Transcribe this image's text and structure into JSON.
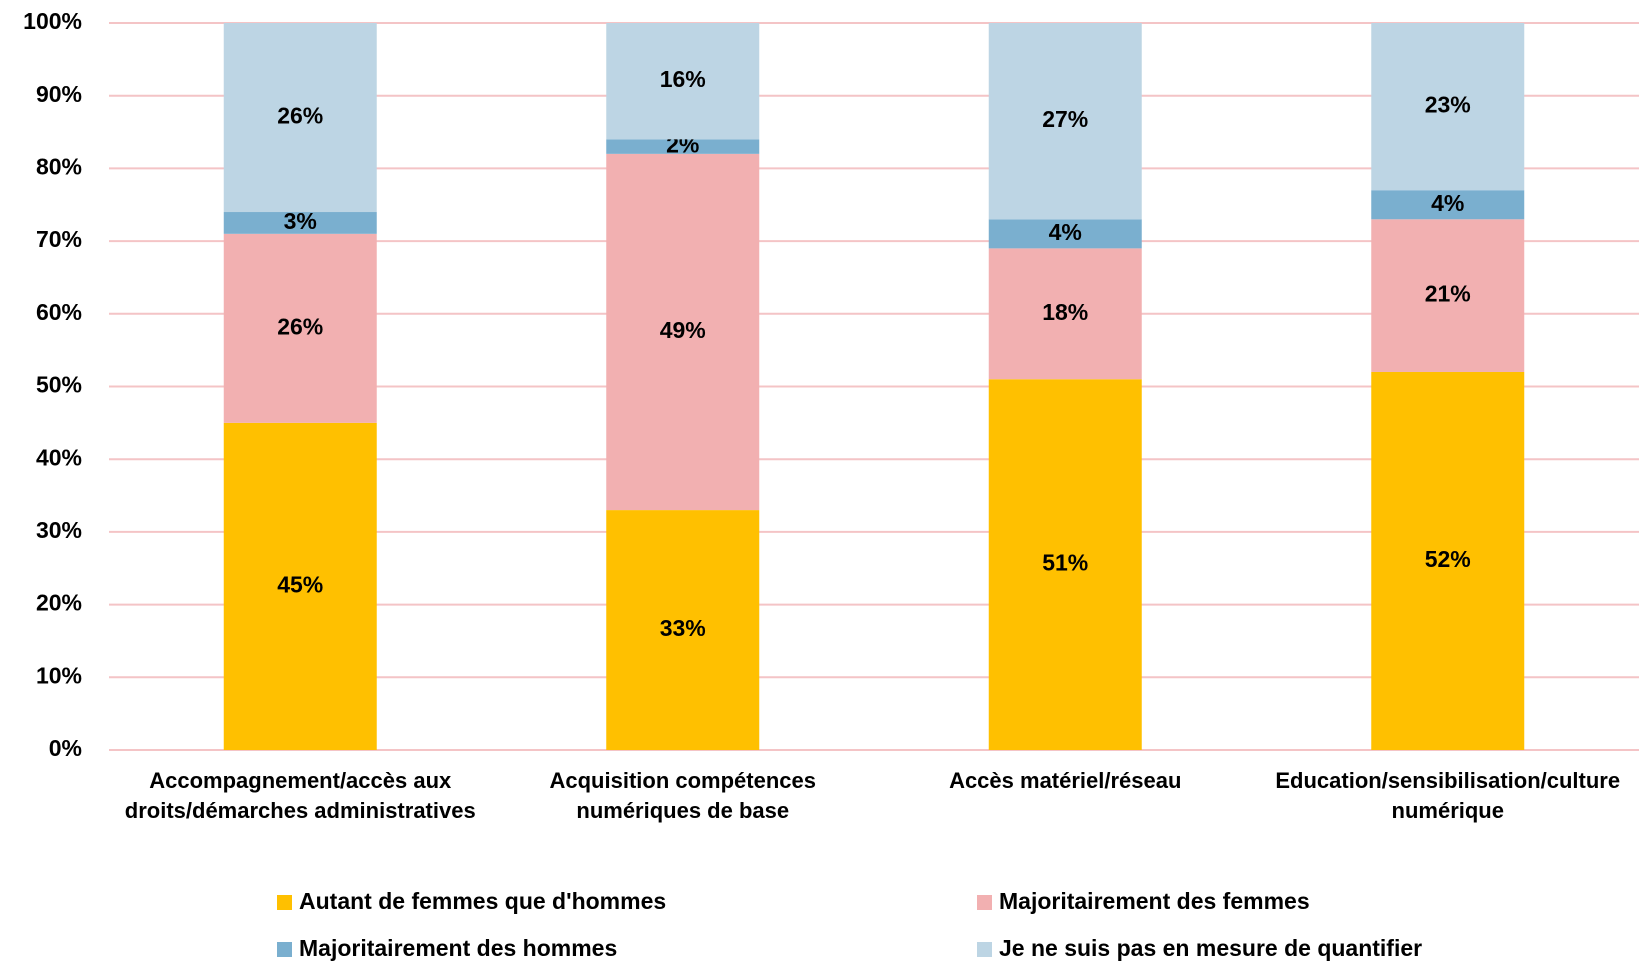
{
  "chart_data": {
    "type": "stacked_bar",
    "categories": [
      "Accompagnement/accès aux\ndroits/démarches administratives",
      "Acquisition compétences\nnumériques de base",
      "Accès matériel/réseau",
      "Education/sensibilisation/culture\nnumérique"
    ],
    "series": [
      {
        "name": "Autant de femmes que d'hommes",
        "color": "#FFC000",
        "values": [
          45,
          33,
          51,
          52
        ],
        "value_labels": [
          "45%",
          "33%",
          "51%",
          "52%"
        ]
      },
      {
        "name": "Majoritairement des femmes",
        "color": "#F2B0B1",
        "values": [
          26,
          49,
          18,
          21
        ],
        "value_labels": [
          "26%",
          "49%",
          "18%",
          "21%"
        ]
      },
      {
        "name": "Majoritairement des hommes",
        "color": "#7AAFCF",
        "values": [
          3,
          2,
          4,
          4
        ],
        "value_labels": [
          "3%",
          "2%",
          "4%",
          "4%"
        ]
      },
      {
        "name": "Je ne suis pas en mesure de quantifier",
        "color": "#BDD5E4",
        "values": [
          26,
          16,
          27,
          23
        ],
        "value_labels": [
          "26%",
          "16%",
          "27%",
          "23%"
        ]
      }
    ],
    "ylim": [
      0,
      100
    ],
    "yticks": [
      {
        "value": 0,
        "label": "0%"
      },
      {
        "value": 10,
        "label": "10%"
      },
      {
        "value": 20,
        "label": "20%"
      },
      {
        "value": 30,
        "label": "30%"
      },
      {
        "value": 40,
        "label": "40%"
      },
      {
        "value": 50,
        "label": "50%"
      },
      {
        "value": 60,
        "label": "60%"
      },
      {
        "value": 70,
        "label": "70%"
      },
      {
        "value": 80,
        "label": "80%"
      },
      {
        "value": 90,
        "label": "90%"
      },
      {
        "value": 100,
        "label": "100%"
      }
    ],
    "grid": true,
    "grid_color": "#F4C4C6",
    "legend": "bottom"
  }
}
